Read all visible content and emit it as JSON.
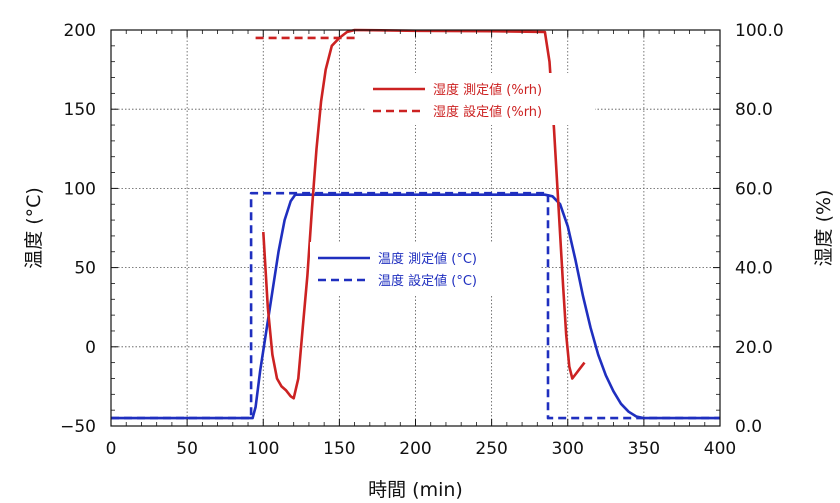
{
  "chart_data": {
    "type": "line",
    "xlabel": "時間 (min)",
    "ylabel_left": "温度 (°C)",
    "ylabel_right": "湿度 (%)",
    "xlim": [
      0,
      400
    ],
    "ylim_left": [
      -50,
      200
    ],
    "ylim_right": [
      0,
      100
    ],
    "x_ticks": [
      "0",
      "50",
      "100",
      "150",
      "200",
      "250",
      "300",
      "350",
      "400"
    ],
    "y_left_ticks": [
      "-50",
      "0",
      "50",
      "100",
      "150",
      "200"
    ],
    "y_right_ticks": [
      "0.0",
      "20.0",
      "40.0",
      "60.0",
      "80.0",
      "100.0"
    ],
    "grid": true,
    "series": [
      {
        "name": "温度 測定値 (°C)",
        "axis": "left",
        "color": "#1f2fbf",
        "style": "solid",
        "points": [
          [
            0,
            -45
          ],
          [
            93,
            -45
          ],
          [
            95,
            -38
          ],
          [
            98,
            -15
          ],
          [
            102,
            10
          ],
          [
            106,
            35
          ],
          [
            110,
            60
          ],
          [
            114,
            80
          ],
          [
            118,
            92
          ],
          [
            121,
            96
          ],
          [
            125,
            96
          ],
          [
            200,
            96
          ],
          [
            285,
            96
          ],
          [
            290,
            95
          ],
          [
            295,
            90
          ],
          [
            300,
            76
          ],
          [
            305,
            55
          ],
          [
            310,
            32
          ],
          [
            315,
            12
          ],
          [
            320,
            -5
          ],
          [
            325,
            -18
          ],
          [
            330,
            -28
          ],
          [
            335,
            -36
          ],
          [
            340,
            -41
          ],
          [
            345,
            -44
          ],
          [
            350,
            -45
          ],
          [
            400,
            -45
          ]
        ]
      },
      {
        "name": "温度 設定値 (°C)",
        "axis": "left",
        "color": "#1f2fbf",
        "style": "dashed",
        "points": [
          [
            0,
            -45
          ],
          [
            92,
            -45
          ],
          [
            92,
            97
          ],
          [
            287,
            97
          ],
          [
            287,
            -45
          ],
          [
            400,
            -45
          ]
        ]
      },
      {
        "name": "湿度 測定値 (%rh)",
        "axis": "right",
        "color": "#cc2222",
        "style": "solid",
        "points": [
          [
            100,
            49
          ],
          [
            103,
            30
          ],
          [
            106,
            18
          ],
          [
            109,
            12
          ],
          [
            112,
            10
          ],
          [
            115,
            9
          ],
          [
            118,
            7.5
          ],
          [
            120,
            7
          ],
          [
            123,
            12
          ],
          [
            126,
            25
          ],
          [
            129,
            38
          ],
          [
            132,
            55
          ],
          [
            135,
            70
          ],
          [
            138,
            82
          ],
          [
            141,
            90
          ],
          [
            145,
            96
          ],
          [
            150,
            98
          ],
          [
            155,
            99.5
          ],
          [
            160,
            100
          ],
          [
            200,
            99.8
          ],
          [
            250,
            99.7
          ],
          [
            285,
            99.5
          ],
          [
            288,
            92
          ],
          [
            291,
            75
          ],
          [
            294,
            55
          ],
          [
            297,
            35
          ],
          [
            299,
            23
          ],
          [
            301,
            15
          ],
          [
            303,
            12
          ],
          [
            305,
            13
          ],
          [
            308,
            14.5
          ],
          [
            311,
            16
          ]
        ]
      },
      {
        "name": "湿度 設定値 (%rh)",
        "axis": "right",
        "color": "#cc2222",
        "style": "dashed",
        "points": [
          [
            95,
            98
          ],
          [
            160,
            98
          ]
        ]
      }
    ]
  }
}
